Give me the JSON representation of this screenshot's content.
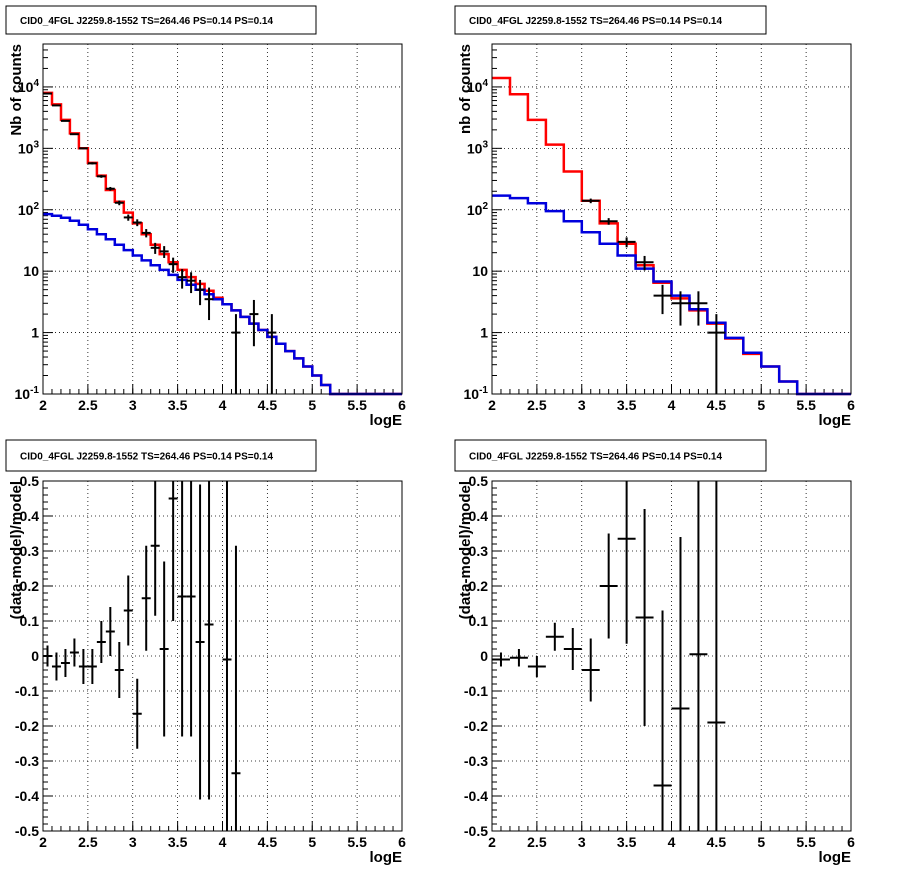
{
  "colors": {
    "data": "#000000",
    "model_total": "#ff0000",
    "model_source": "#0000dd",
    "grid": "#000000",
    "frame": "#000000",
    "background": "#ffffff"
  },
  "chart_data": [
    {
      "type": "line",
      "title": "CID0_4FGL J2259.8-1552 TS=264.46 PS=0.14 PS=0.14",
      "xlabel": "logE",
      "ylabel": "Nb of counts",
      "xlim": [
        2,
        6
      ],
      "ylim": [
        0.1,
        50000
      ],
      "yscale": "log",
      "grid": true,
      "xticks": [
        "2",
        "2.5",
        "3",
        "3.5",
        "4",
        "4.5",
        "5",
        "5.5",
        "6"
      ],
      "yticks": [
        "10^{-1}",
        "1",
        "10",
        "10^{2}",
        "10^{3}",
        "10^{4}"
      ],
      "bin_width": 0.1,
      "series": [
        {
          "role": "total model",
          "color": "#ff0000",
          "x": [
            2.0,
            2.1,
            2.2,
            2.3,
            2.4,
            2.5,
            2.6,
            2.7,
            2.8,
            2.9,
            3.0,
            3.1,
            3.2,
            3.3,
            3.4,
            3.5,
            3.6,
            3.7,
            3.8,
            3.9,
            4.0,
            4.1,
            4.2,
            4.3,
            4.4,
            4.5,
            4.6,
            4.7,
            4.8,
            4.9,
            5.0,
            5.1,
            5.2,
            5.3,
            5.4,
            5.5,
            5.6,
            5.7,
            5.8,
            5.9
          ],
          "values": [
            8000,
            5200,
            2900,
            1750,
            1000,
            580,
            360,
            210,
            135,
            90,
            60,
            40,
            27,
            19,
            14,
            10.5,
            8,
            6.2,
            4.8,
            3.7,
            2.9,
            2.3,
            1.8,
            1.4,
            1.1,
            0.85,
            0.66,
            0.5,
            0.38,
            0.28,
            0.2,
            0.14,
            0.1,
            0.1,
            0.1,
            0.1,
            0.1,
            0.1,
            0.1,
            0.1
          ]
        },
        {
          "role": "source model",
          "color": "#0000dd",
          "x": [
            2.0,
            2.1,
            2.2,
            2.3,
            2.4,
            2.5,
            2.6,
            2.7,
            2.8,
            2.9,
            3.0,
            3.1,
            3.2,
            3.3,
            3.4,
            3.5,
            3.6,
            3.7,
            3.8,
            3.9,
            4.0,
            4.1,
            4.2,
            4.3,
            4.4,
            4.5,
            4.6,
            4.7,
            4.8,
            4.9,
            5.0,
            5.1,
            5.2,
            5.3,
            5.4,
            5.5,
            5.6,
            5.7,
            5.8,
            5.9
          ],
          "values": [
            85,
            80,
            74,
            66,
            57,
            48,
            40,
            33,
            27,
            22,
            18,
            15,
            12.5,
            10.5,
            8.7,
            7.2,
            6,
            5,
            4.2,
            3.5,
            2.9,
            2.3,
            1.8,
            1.4,
            1.1,
            0.85,
            0.66,
            0.5,
            0.38,
            0.28,
            0.2,
            0.14,
            0.1,
            0.1,
            0.1,
            0.1,
            0.1,
            0.1,
            0.1,
            0.1
          ]
        },
        {
          "role": "data",
          "color": "#000000",
          "style": "errorbar",
          "x": [
            2.05,
            2.15,
            2.25,
            2.35,
            2.45,
            2.55,
            2.65,
            2.75,
            2.85,
            2.95,
            3.05,
            3.15,
            3.25,
            3.35,
            3.45,
            3.55,
            3.65,
            3.75,
            3.85,
            4.15,
            4.35,
            4.55
          ],
          "values": [
            7800,
            5000,
            2800,
            1700,
            1000,
            570,
            350,
            220,
            130,
            75,
            62,
            42,
            24,
            21,
            13,
            8,
            7,
            5,
            3.5,
            1,
            2,
            1
          ],
          "err_low": [
            88,
            71,
            53,
            41,
            32,
            24,
            19,
            15,
            11.4,
            8.7,
            7.9,
            6.5,
            4.9,
            4.6,
            3.6,
            2.8,
            2.6,
            2.2,
            1.9,
            1,
            1.4,
            1
          ],
          "err_high": [
            88,
            71,
            53,
            41,
            32,
            24,
            19,
            15,
            11.4,
            8.7,
            7.9,
            6.5,
            4.9,
            4.6,
            3.6,
            2.8,
            2.6,
            2.2,
            1.9,
            1,
            1.4,
            1
          ]
        }
      ]
    },
    {
      "type": "line",
      "title": "CID0_4FGL J2259.8-1552 TS=264.46 PS=0.14 PS=0.14",
      "xlabel": "logE",
      "ylabel": "nb of counts",
      "xlim": [
        2,
        6
      ],
      "ylim": [
        0.1,
        50000
      ],
      "yscale": "log",
      "grid": true,
      "xticks": [
        "2",
        "2.5",
        "3",
        "3.5",
        "4",
        "4.5",
        "5",
        "5.5",
        "6"
      ],
      "yticks": [
        "10^{-1}",
        "1",
        "10",
        "10^{2}",
        "10^{3}",
        "10^{4}"
      ],
      "bin_width": 0.2,
      "series": [
        {
          "role": "total model",
          "color": "#ff0000",
          "x": [
            2.0,
            2.2,
            2.4,
            2.6,
            2.8,
            3.0,
            3.2,
            3.4,
            3.6,
            3.8,
            4.0,
            4.2,
            4.4,
            4.6,
            4.8,
            5.0,
            5.2,
            5.4,
            5.6,
            5.8
          ],
          "values": [
            14000,
            7600,
            2900,
            1150,
            420,
            140,
            60,
            28,
            12.5,
            6.5,
            3.6,
            2.3,
            1.4,
            0.8,
            0.45,
            0.28,
            0.16,
            0.1,
            0.1,
            0.1
          ]
        },
        {
          "role": "source model",
          "color": "#0000dd",
          "x": [
            2.0,
            2.2,
            2.4,
            2.6,
            2.8,
            3.0,
            3.2,
            3.4,
            3.6,
            3.8,
            4.0,
            4.2,
            4.4,
            4.6,
            4.8,
            5.0,
            5.2,
            5.4,
            5.6,
            5.8
          ],
          "values": [
            170,
            155,
            128,
            95,
            65,
            43,
            28,
            18,
            11,
            6.8,
            4,
            2.4,
            1.45,
            0.82,
            0.47,
            0.28,
            0.16,
            0.1,
            0.1,
            0.1
          ]
        },
        {
          "role": "data",
          "color": "#000000",
          "style": "errorbar",
          "x": [
            3.1,
            3.3,
            3.5,
            3.7,
            3.9,
            4.1,
            4.3,
            4.5
          ],
          "values": [
            140,
            65,
            30,
            14,
            4,
            3,
            3,
            1
          ],
          "err_low": [
            12,
            8,
            5.5,
            3.7,
            2,
            1.7,
            1.7,
            1
          ],
          "err_high": [
            12,
            8,
            5.5,
            3.7,
            2,
            1.7,
            1.7,
            1
          ]
        }
      ]
    },
    {
      "type": "scatter",
      "title": "CID0_4FGL J2259.8-1552 TS=264.46 PS=0.14 PS=0.14",
      "xlabel": "logE",
      "ylabel": "(data-model)/model",
      "xlim": [
        2,
        6
      ],
      "ylim": [
        -0.5,
        0.5
      ],
      "grid": true,
      "xticks": [
        "2",
        "2.5",
        "3",
        "3.5",
        "4",
        "4.5",
        "5",
        "5.5",
        "6"
      ],
      "yticks": [
        "-0.5",
        "-0.4",
        "-0.3",
        "-0.2",
        "-0.1",
        "0",
        "0.1",
        "0.2",
        "0.3",
        "0.4",
        "0.5"
      ],
      "bin_width": 0.1,
      "series": [
        {
          "role": "residuals",
          "color": "#000000",
          "style": "errorbar",
          "x": [
            2.05,
            2.15,
            2.25,
            2.35,
            2.45,
            2.55,
            2.65,
            2.75,
            2.85,
            2.95,
            3.05,
            3.15,
            3.25,
            3.35,
            3.45,
            3.55,
            3.65,
            3.75,
            3.85,
            4.05,
            4.15
          ],
          "values": [
            0.0,
            -0.03,
            -0.02,
            0.01,
            -0.03,
            -0.03,
            0.04,
            0.07,
            -0.04,
            0.13,
            -0.165,
            0.165,
            0.315,
            0.02,
            0.45,
            0.17,
            0.17,
            0.04,
            0.09,
            -0.01,
            -0.335
          ],
          "err": [
            0.03,
            0.04,
            0.04,
            0.04,
            0.05,
            0.05,
            0.06,
            0.07,
            0.08,
            0.1,
            0.1,
            0.15,
            0.2,
            0.25,
            0.35,
            0.4,
            0.4,
            0.45,
            0.5,
            0.6,
            0.65
          ]
        }
      ]
    },
    {
      "type": "scatter",
      "title": "CID0_4FGL J2259.8-1552 TS=264.46 PS=0.14 PS=0.14",
      "xlabel": "logE",
      "ylabel": "(data-model)/model",
      "xlim": [
        2,
        6
      ],
      "ylim": [
        -0.5,
        0.5
      ],
      "grid": true,
      "xticks": [
        "2",
        "2.5",
        "3",
        "3.5",
        "4",
        "4.5",
        "5",
        "5.5",
        "6"
      ],
      "yticks": [
        "-0.5",
        "-0.4",
        "-0.3",
        "-0.2",
        "-0.1",
        "0",
        "0.1",
        "0.2",
        "0.3",
        "0.4",
        "0.5"
      ],
      "bin_width": 0.2,
      "series": [
        {
          "role": "residuals",
          "color": "#000000",
          "style": "errorbar",
          "x": [
            2.1,
            2.3,
            2.5,
            2.7,
            2.9,
            3.1,
            3.3,
            3.5,
            3.7,
            3.9,
            4.1,
            4.3,
            4.5
          ],
          "values": [
            -0.01,
            -0.005,
            -0.03,
            0.055,
            0.02,
            -0.04,
            0.2,
            0.335,
            0.11,
            -0.37,
            -0.15,
            0.005,
            -0.19
          ],
          "err": [
            0.02,
            0.025,
            0.03,
            0.04,
            0.06,
            0.09,
            0.15,
            0.3,
            0.31,
            0.5,
            0.49,
            0.6,
            0.9
          ]
        }
      ]
    }
  ]
}
